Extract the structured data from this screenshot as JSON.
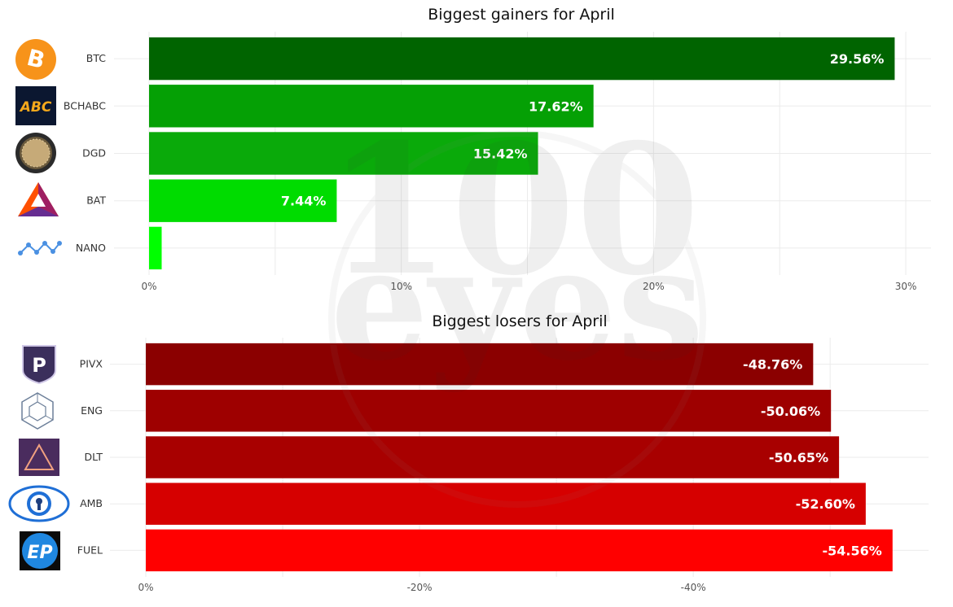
{
  "gainers": {
    "title": "Biggest gainers for April",
    "chart_data": {
      "type": "bar",
      "orientation": "horizontal",
      "title": "Biggest gainers for April",
      "categories": [
        "BTC",
        "BCHABC",
        "DGD",
        "BAT",
        "NANO"
      ],
      "values": [
        29.56,
        17.62,
        15.42,
        7.44,
        0.5
      ],
      "labels": [
        "29.56%",
        "17.62%",
        "15.42%",
        "7.44%",
        ""
      ],
      "colors": [
        "#006400",
        "#05a005",
        "#0aaa0a",
        "#00dc00",
        "#00ff00"
      ],
      "icons": [
        "bitcoin-icon",
        "bitcoin-abc-icon",
        "digixdao-icon",
        "basic-attention-token-icon",
        "nano-icon"
      ],
      "xlim": [
        0,
        31
      ],
      "xticks": [
        0,
        10,
        20,
        30
      ],
      "xtick_labels": [
        "0%",
        "10%",
        "20%",
        "30%"
      ],
      "grid": true
    }
  },
  "losers": {
    "title": "Biggest losers for April",
    "chart_data": {
      "type": "bar",
      "orientation": "horizontal",
      "title": "Biggest losers for April",
      "categories": [
        "PIVX",
        "ENG",
        "DLT",
        "AMB",
        "FUEL"
      ],
      "values": [
        -48.76,
        -50.06,
        -50.65,
        -52.6,
        -54.56
      ],
      "labels": [
        "-48.76%",
        "-50.06%",
        "-50.65%",
        "-52.60%",
        "-54.56%"
      ],
      "colors": [
        "#8b0000",
        "#9e0000",
        "#a80000",
        "#d60000",
        "#ff0000"
      ],
      "icons": [
        "pivx-icon",
        "enigma-icon",
        "agrello-icon",
        "ambrosus-icon",
        "etherparty-icon"
      ],
      "xlim": [
        0,
        -56
      ],
      "xticks": [
        0,
        -20,
        -40
      ],
      "xtick_labels": [
        "0%",
        "-20%",
        "-40%"
      ],
      "grid": true
    }
  },
  "watermark": "100eyes"
}
